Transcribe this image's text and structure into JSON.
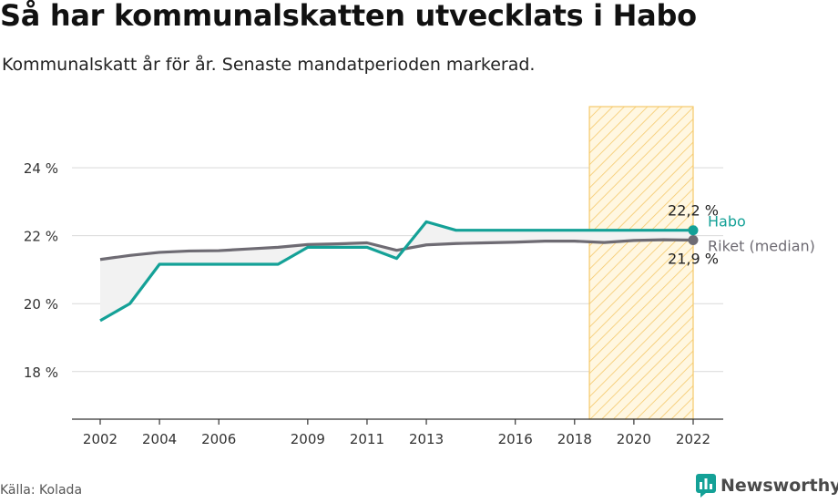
{
  "header": {
    "title": "Så har kommunalskatten utvecklats i Habo",
    "subtitle": "Kommunalskatt år för år. Senaste mandatperioden markerad."
  },
  "footer": {
    "source": "Källa: Kolada",
    "brand": "Newsworthy",
    "brand_icon": "newsworthy-logo-icon"
  },
  "colors": {
    "habo": "#14a197",
    "riket": "#6e6b73",
    "highlight_fill": "#fff5d9",
    "highlight_stroke": "#f5c96a",
    "grid": "#d9d9d9",
    "fill_between": "#f2f2f2"
  },
  "chart_data": {
    "type": "line",
    "title": "Så har kommunalskatten utvecklats i Habo",
    "subtitle": "Kommunalskatt år för år. Senaste mandatperioden markerad.",
    "x": [
      2002,
      2003,
      2004,
      2005,
      2006,
      2007,
      2008,
      2009,
      2010,
      2011,
      2012,
      2013,
      2014,
      2015,
      2016,
      2017,
      2018,
      2019,
      2020,
      2021,
      2022
    ],
    "x_ticks": [
      "2002",
      "2004",
      "2006",
      "2009",
      "2011",
      "2013",
      "2016",
      "2018",
      "2020",
      "2022"
    ],
    "y_ticks": [
      "18 %",
      "20 %",
      "22 %",
      "24 %"
    ],
    "y_tick_values": [
      18,
      20,
      22,
      24
    ],
    "xlim": [
      2001,
      2023
    ],
    "ylim": [
      16.6,
      25.8
    ],
    "grid": true,
    "series": [
      {
        "name": "Habo",
        "values": [
          19.5,
          20.0,
          21.16,
          21.16,
          21.16,
          21.16,
          21.16,
          21.66,
          21.66,
          21.66,
          21.33,
          22.41,
          22.16,
          22.16,
          22.16,
          22.16,
          22.16,
          22.16,
          22.16,
          22.16,
          22.16
        ],
        "end_label": "22,2 %"
      },
      {
        "name": "Riket (median)",
        "values": [
          21.3,
          21.42,
          21.51,
          21.55,
          21.56,
          21.61,
          21.66,
          21.74,
          21.76,
          21.79,
          21.57,
          21.73,
          21.77,
          21.79,
          21.81,
          21.84,
          21.84,
          21.8,
          21.86,
          21.88,
          21.87
        ],
        "end_label": "21,9 %"
      }
    ],
    "highlight_period": {
      "from": 2018.5,
      "to": 2022,
      "description": "Senaste mandatperioden"
    },
    "annotations": [
      "22,2 %",
      "21,9 %"
    ]
  }
}
